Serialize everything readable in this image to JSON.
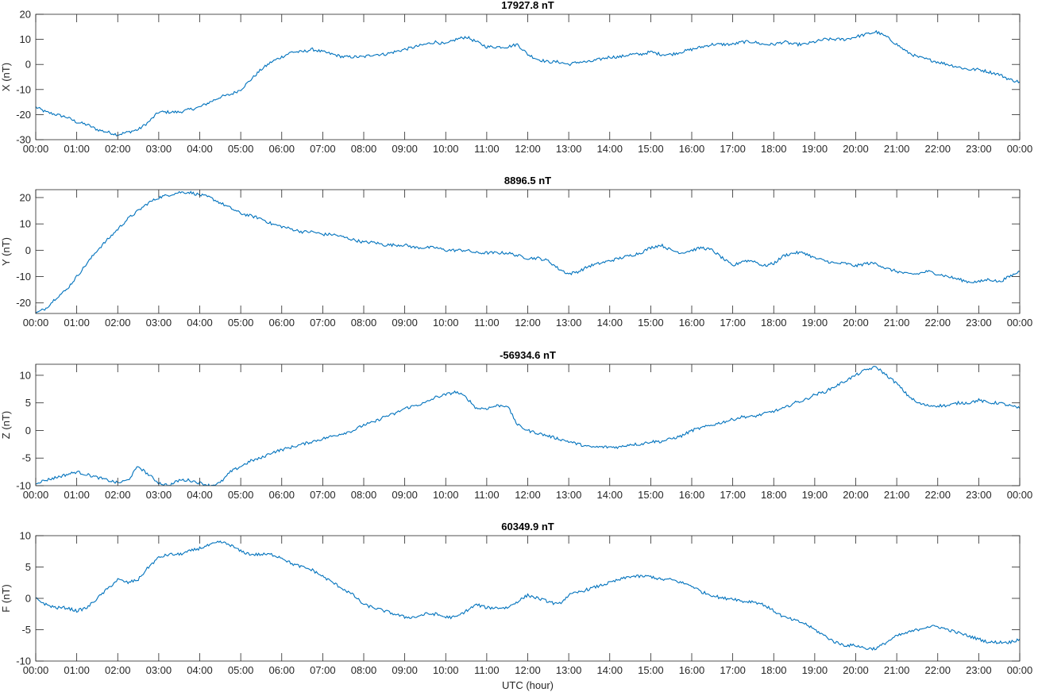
{
  "figure": {
    "xlabel": "UTC (hour)",
    "line_color": "#0072BD",
    "axis_color": "#262626",
    "x_tick_labels": [
      "00:00",
      "01:00",
      "02:00",
      "03:00",
      "04:00",
      "05:00",
      "06:00",
      "07:00",
      "08:00",
      "09:00",
      "10:00",
      "11:00",
      "12:00",
      "13:00",
      "14:00",
      "15:00",
      "16:00",
      "17:00",
      "18:00",
      "19:00",
      "20:00",
      "21:00",
      "22:00",
      "23:00",
      "00:00"
    ]
  },
  "chart_data": [
    {
      "type": "line",
      "title": "17927.8 nT",
      "ylabel": "X (nT)",
      "xlim": [
        0,
        24
      ],
      "ylim": [
        -30,
        20
      ],
      "yticks": [
        -30,
        -20,
        -10,
        0,
        10,
        20
      ],
      "grid": false,
      "x": [
        0,
        0.25,
        0.5,
        0.75,
        1,
        1.25,
        1.5,
        1.75,
        2,
        2.25,
        2.5,
        2.75,
        3,
        3.25,
        3.5,
        3.75,
        4,
        4.25,
        4.5,
        4.75,
        5,
        5.25,
        5.5,
        5.75,
        6,
        6.25,
        6.5,
        6.75,
        7,
        7.25,
        7.5,
        7.75,
        8,
        8.25,
        8.5,
        8.75,
        9,
        9.25,
        9.5,
        9.75,
        10,
        10.25,
        10.5,
        10.75,
        11,
        11.25,
        11.5,
        11.75,
        12,
        12.25,
        12.5,
        12.75,
        13,
        13.25,
        13.5,
        13.75,
        14,
        14.25,
        14.5,
        14.75,
        15,
        15.25,
        15.5,
        15.75,
        16,
        16.25,
        16.5,
        16.75,
        17,
        17.25,
        17.5,
        17.75,
        18,
        18.25,
        18.5,
        18.75,
        19,
        19.25,
        19.5,
        19.75,
        20,
        20.25,
        20.5,
        20.75,
        21,
        21.25,
        21.5,
        21.75,
        22,
        22.25,
        22.5,
        22.75,
        23,
        23.25,
        23.5,
        23.75,
        24
      ],
      "y": [
        -17,
        -19,
        -20,
        -21,
        -23,
        -24,
        -26,
        -27,
        -28,
        -27,
        -26,
        -23,
        -19,
        -19,
        -19,
        -18,
        -17,
        -15,
        -13,
        -12,
        -10,
        -6,
        -2,
        1,
        3,
        5,
        5,
        6,
        5,
        4,
        3,
        3,
        3,
        4,
        4,
        5,
        6,
        7,
        8,
        9,
        8,
        10,
        11,
        9,
        7,
        7,
        7,
        8,
        4,
        2,
        1,
        1,
        0,
        1,
        1,
        2,
        3,
        3,
        4,
        4,
        5,
        4,
        4,
        5,
        6,
        7,
        8,
        8,
        8,
        9,
        9,
        8,
        8,
        9,
        8,
        8,
        9,
        10,
        10,
        10,
        11,
        12,
        13,
        11,
        8,
        5,
        3,
        2,
        1,
        0,
        -1,
        -2,
        -2,
        -3,
        -4,
        -6,
        -7
      ],
      "series": [
        {
          "x": "x",
          "y": "y"
        }
      ]
    },
    {
      "type": "line",
      "title": "8896.5 nT",
      "ylabel": "Y (nT)",
      "xlim": [
        0,
        24
      ],
      "ylim": [
        -24,
        23
      ],
      "yticks": [
        -20,
        -10,
        0,
        10,
        20
      ],
      "grid": false,
      "x": [
        0,
        0.25,
        0.5,
        0.75,
        1,
        1.25,
        1.5,
        1.75,
        2,
        2.25,
        2.5,
        2.75,
        3,
        3.25,
        3.5,
        3.75,
        4,
        4.25,
        4.5,
        4.75,
        5,
        5.25,
        5.5,
        5.75,
        6,
        6.25,
        6.5,
        6.75,
        7,
        7.25,
        7.5,
        7.75,
        8,
        8.25,
        8.5,
        8.75,
        9,
        9.25,
        9.5,
        9.75,
        10,
        10.25,
        10.5,
        10.75,
        11,
        11.25,
        11.5,
        11.75,
        12,
        12.25,
        12.5,
        12.75,
        13,
        13.25,
        13.5,
        13.75,
        14,
        14.25,
        14.5,
        14.75,
        15,
        15.25,
        15.5,
        15.75,
        16,
        16.25,
        16.5,
        16.75,
        17,
        17.25,
        17.5,
        17.75,
        18,
        18.25,
        18.5,
        18.75,
        19,
        19.25,
        19.5,
        19.75,
        20,
        20.25,
        20.5,
        20.75,
        21,
        21.25,
        21.5,
        21.75,
        22,
        22.25,
        22.5,
        22.75,
        23,
        23.25,
        23.5,
        23.75,
        24
      ],
      "y": [
        -24,
        -22,
        -18,
        -15,
        -10,
        -5,
        0,
        4,
        8,
        12,
        15,
        18,
        20,
        21,
        22,
        22,
        21,
        20,
        18,
        16,
        14,
        13,
        12,
        10,
        9,
        8,
        7,
        7,
        6,
        6,
        5,
        4,
        3,
        3,
        2,
        2,
        2,
        1,
        1,
        1,
        0,
        0,
        0,
        -1,
        -1,
        -1,
        -1,
        -2,
        -3,
        -3,
        -4,
        -7,
        -9,
        -8,
        -6,
        -5,
        -4,
        -3,
        -2,
        -1,
        1,
        2,
        0,
        -1,
        0,
        1,
        0,
        -3,
        -6,
        -4,
        -4,
        -6,
        -5,
        -2,
        -1,
        -1,
        -3,
        -4,
        -5,
        -5,
        -6,
        -5,
        -5,
        -7,
        -8,
        -9,
        -9,
        -8,
        -9,
        -10,
        -11,
        -12,
        -12,
        -11,
        -12,
        -10,
        -8
      ],
      "series": [
        {
          "x": "x",
          "y": "y"
        }
      ]
    },
    {
      "type": "line",
      "title": "-56934.6 nT",
      "ylabel": "Z (nT)",
      "xlim": [
        0,
        24
      ],
      "ylim": [
        -10,
        12
      ],
      "yticks": [
        -10,
        -5,
        0,
        5,
        10
      ],
      "grid": false,
      "x": [
        0,
        0.25,
        0.5,
        0.75,
        1,
        1.25,
        1.5,
        1.75,
        2,
        2.25,
        2.5,
        2.75,
        3,
        3.25,
        3.5,
        3.75,
        4,
        4.25,
        4.5,
        4.75,
        5,
        5.25,
        5.5,
        5.75,
        6,
        6.25,
        6.5,
        6.75,
        7,
        7.25,
        7.5,
        7.75,
        8,
        8.25,
        8.5,
        8.75,
        9,
        9.25,
        9.5,
        9.75,
        10,
        10.25,
        10.5,
        10.75,
        11,
        11.25,
        11.5,
        11.75,
        12,
        12.25,
        12.5,
        12.75,
        13,
        13.25,
        13.5,
        13.75,
        14,
        14.25,
        14.5,
        14.75,
        15,
        15.25,
        15.5,
        15.75,
        16,
        16.25,
        16.5,
        16.75,
        17,
        17.25,
        17.5,
        17.75,
        18,
        18.25,
        18.5,
        18.75,
        19,
        19.25,
        19.5,
        19.75,
        20,
        20.25,
        20.5,
        20.75,
        21,
        21.25,
        21.5,
        21.75,
        22,
        22.25,
        22.5,
        22.75,
        23,
        23.25,
        23.5,
        23.75,
        24
      ],
      "y": [
        -9.5,
        -9,
        -8.5,
        -8,
        -7.5,
        -8,
        -8.5,
        -9,
        -9.5,
        -9,
        -6.5,
        -8,
        -9.5,
        -10,
        -9,
        -9,
        -9.5,
        -10,
        -9.5,
        -7.5,
        -6.5,
        -5.5,
        -5,
        -4,
        -3.5,
        -3,
        -2.5,
        -2,
        -1.5,
        -1,
        -0.5,
        0,
        1,
        1.5,
        2.5,
        3,
        4,
        4.5,
        5,
        6,
        6.5,
        7,
        6,
        4,
        4,
        4.5,
        4.5,
        1,
        0,
        -0.5,
        -1,
        -1.5,
        -2,
        -2.5,
        -3,
        -3,
        -3,
        -3,
        -2.5,
        -2.5,
        -2,
        -2,
        -1.5,
        -1,
        0,
        0.5,
        1,
        1.5,
        2,
        2.5,
        2.5,
        3,
        3.5,
        4,
        5,
        5.5,
        6.5,
        7,
        8,
        9,
        10,
        11,
        11.5,
        10,
        8.5,
        6.5,
        5,
        4.5,
        4.5,
        4.5,
        5,
        5,
        5.5,
        5,
        5,
        4.5,
        4
      ],
      "series": [
        {
          "x": "x",
          "y": "y"
        }
      ]
    },
    {
      "type": "line",
      "title": "60349.9 nT",
      "ylabel": "F (nT)",
      "xlim": [
        0,
        24
      ],
      "ylim": [
        -10,
        10
      ],
      "yticks": [
        -10,
        -5,
        0,
        5,
        10
      ],
      "grid": false,
      "x": [
        0,
        0.25,
        0.5,
        0.75,
        1,
        1.25,
        1.5,
        1.75,
        2,
        2.25,
        2.5,
        2.75,
        3,
        3.25,
        3.5,
        3.75,
        4,
        4.25,
        4.5,
        4.75,
        5,
        5.25,
        5.5,
        5.75,
        6,
        6.25,
        6.5,
        6.75,
        7,
        7.25,
        7.5,
        7.75,
        8,
        8.25,
        8.5,
        8.75,
        9,
        9.25,
        9.5,
        9.75,
        10,
        10.25,
        10.5,
        10.75,
        11,
        11.25,
        11.5,
        11.75,
        12,
        12.25,
        12.5,
        12.75,
        13,
        13.25,
        13.5,
        13.75,
        14,
        14.25,
        14.5,
        14.75,
        15,
        15.25,
        15.5,
        15.75,
        16,
        16.25,
        16.5,
        16.75,
        17,
        17.25,
        17.5,
        17.75,
        18,
        18.25,
        18.5,
        18.75,
        19,
        19.25,
        19.5,
        19.75,
        20,
        20.25,
        20.5,
        20.75,
        21,
        21.25,
        21.5,
        21.75,
        22,
        22.25,
        22.5,
        22.75,
        23,
        23.25,
        23.5,
        23.75,
        24
      ],
      "y": [
        0,
        -1,
        -1.5,
        -1.5,
        -2,
        -1.5,
        0,
        1.5,
        3,
        2.5,
        3,
        5,
        6.5,
        7,
        7,
        7.5,
        8,
        8.5,
        9,
        8.5,
        7.5,
        7,
        7,
        7,
        6.5,
        5.5,
        5,
        4.5,
        3.5,
        2.5,
        1.5,
        0.5,
        -1,
        -1.5,
        -2,
        -2.5,
        -3,
        -3,
        -2.5,
        -2.5,
        -3,
        -3,
        -2,
        -1,
        -1.5,
        -1.5,
        -1.5,
        -0.5,
        0.5,
        0,
        -0.5,
        -1,
        0.5,
        1,
        1.5,
        2,
        2.5,
        3,
        3.5,
        3.5,
        3.5,
        3,
        3,
        2.5,
        2,
        1,
        0.5,
        0,
        0,
        -0.5,
        -0.5,
        -1,
        -2,
        -3,
        -3.5,
        -4,
        -5,
        -6,
        -7,
        -7.5,
        -7.5,
        -8,
        -8,
        -7,
        -6,
        -5.5,
        -5,
        -4.5,
        -4.5,
        -5,
        -5.5,
        -6,
        -6.5,
        -7,
        -7,
        -7,
        -6.5
      ],
      "series": [
        {
          "x": "x",
          "y": "y"
        }
      ]
    }
  ]
}
